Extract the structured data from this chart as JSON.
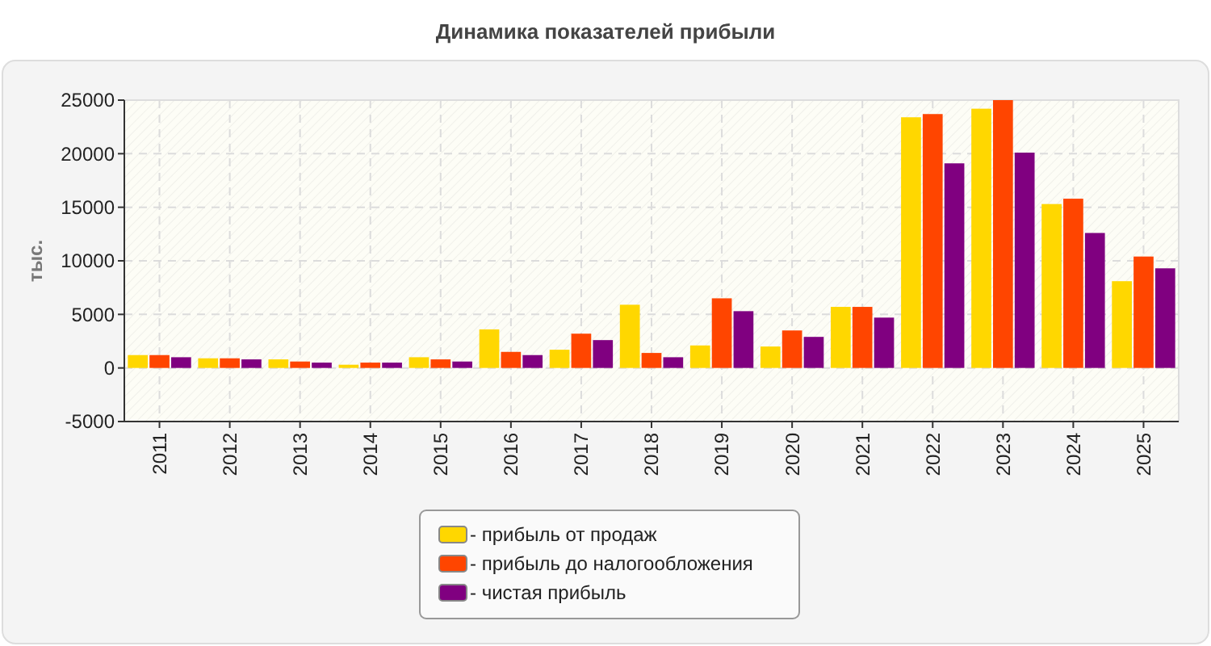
{
  "chart_data": {
    "type": "bar",
    "title": "Динамика показателей прибыли",
    "ylabel": "тыс.",
    "categories": [
      "2011",
      "2012",
      "2013",
      "2014",
      "2015",
      "2016",
      "2017",
      "2018",
      "2019",
      "2020",
      "2021",
      "2022",
      "2023",
      "2024",
      "2025"
    ],
    "series": [
      {
        "name": "- прибыль от продаж",
        "color": "#ffd700",
        "values": [
          1200,
          900,
          800,
          300,
          1000,
          3600,
          1700,
          5900,
          2100,
          2000,
          5700,
          23400,
          24200,
          15300,
          8100
        ]
      },
      {
        "name": "- прибыль до налогообложения",
        "color": "#ff4500",
        "values": [
          1200,
          900,
          600,
          500,
          800,
          1500,
          3200,
          1400,
          6500,
          3500,
          5700,
          23700,
          25000,
          15800,
          10400
        ]
      },
      {
        "name": "- чистая прибыль",
        "color": "#800080",
        "values": [
          1000,
          800,
          500,
          500,
          600,
          1200,
          2600,
          1000,
          5300,
          2900,
          4700,
          19100,
          20100,
          12600,
          9300
        ]
      }
    ],
    "ylim": [
      -5000,
      25000
    ],
    "yticks": [
      -5000,
      0,
      5000,
      10000,
      15000,
      20000,
      25000
    ],
    "grid": true,
    "legend": "bottom"
  }
}
